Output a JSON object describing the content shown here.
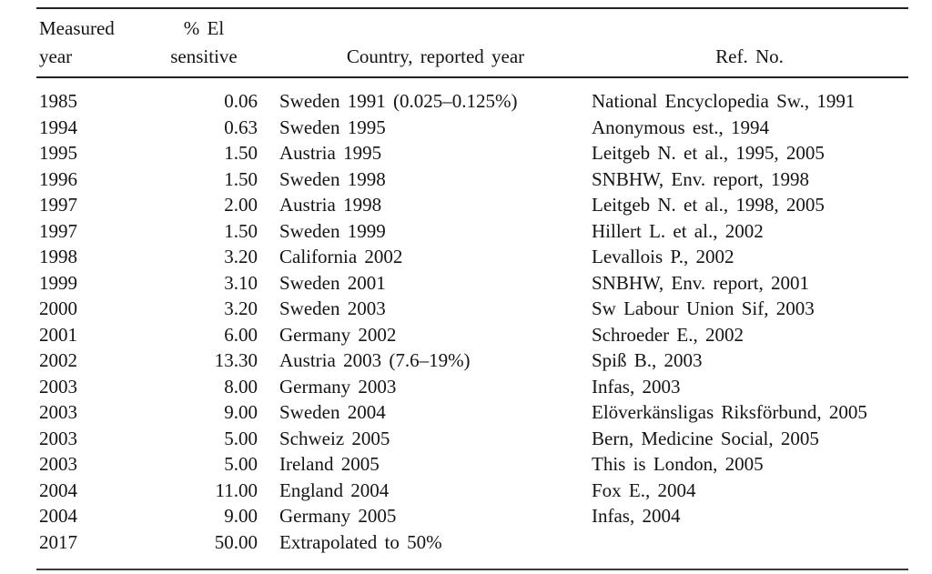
{
  "table": {
    "header": {
      "col1": {
        "line1": "Measured",
        "line2": "year"
      },
      "col2": {
        "line1": "% El",
        "line2": "sensitive"
      },
      "col3": "Country, reported year",
      "col4": "Ref. No."
    },
    "rows": [
      {
        "measured_year": "1985",
        "pct_el_sensitive": "0.06",
        "country_reported_year": "Sweden 1991 (0.025–0.125%)",
        "ref_no": "National Encyclopedia Sw., 1991"
      },
      {
        "measured_year": "1994",
        "pct_el_sensitive": "0.63",
        "country_reported_year": "Sweden 1995",
        "ref_no": "Anonymous est., 1994"
      },
      {
        "measured_year": "1995",
        "pct_el_sensitive": "1.50",
        "country_reported_year": "Austria 1995",
        "ref_no": "Leitgeb N. et al., 1995, 2005"
      },
      {
        "measured_year": "1996",
        "pct_el_sensitive": "1.50",
        "country_reported_year": "Sweden 1998",
        "ref_no": "SNBHW, Env. report, 1998"
      },
      {
        "measured_year": "1997",
        "pct_el_sensitive": "2.00",
        "country_reported_year": "Austria 1998",
        "ref_no": "Leitgeb N. et al., 1998, 2005"
      },
      {
        "measured_year": "1997",
        "pct_el_sensitive": "1.50",
        "country_reported_year": "Sweden 1999",
        "ref_no": "Hillert L. et al., 2002"
      },
      {
        "measured_year": "1998",
        "pct_el_sensitive": "3.20",
        "country_reported_year": "California 2002",
        "ref_no": "Levallois P., 2002"
      },
      {
        "measured_year": "1999",
        "pct_el_sensitive": "3.10",
        "country_reported_year": "Sweden 2001",
        "ref_no": "SNBHW, Env. report, 2001"
      },
      {
        "measured_year": "2000",
        "pct_el_sensitive": "3.20",
        "country_reported_year": "Sweden 2003",
        "ref_no": "Sw Labour Union Sif, 2003"
      },
      {
        "measured_year": "2001",
        "pct_el_sensitive": "6.00",
        "country_reported_year": "Germany 2002",
        "ref_no": "Schroeder E., 2002"
      },
      {
        "measured_year": "2002",
        "pct_el_sensitive": "13.30",
        "country_reported_year": "Austria 2003 (7.6–19%)",
        "ref_no": "Spiß B., 2003"
      },
      {
        "measured_year": "2003",
        "pct_el_sensitive": "8.00",
        "country_reported_year": "Germany 2003",
        "ref_no": "Infas, 2003"
      },
      {
        "measured_year": "2003",
        "pct_el_sensitive": "9.00",
        "country_reported_year": "Sweden 2004",
        "ref_no": "Elöverkänsligas Riksförbund, 2005"
      },
      {
        "measured_year": "2003",
        "pct_el_sensitive": "5.00",
        "country_reported_year": "Schweiz 2005",
        "ref_no": "Bern, Medicine Social, 2005"
      },
      {
        "measured_year": "2003",
        "pct_el_sensitive": "5.00",
        "country_reported_year": "Ireland 2005",
        "ref_no": "This is London, 2005"
      },
      {
        "measured_year": "2004",
        "pct_el_sensitive": "11.00",
        "country_reported_year": "England 2004",
        "ref_no": "Fox E., 2004"
      },
      {
        "measured_year": "2004",
        "pct_el_sensitive": "9.00",
        "country_reported_year": "Germany 2005",
        "ref_no": "Infas, 2004"
      },
      {
        "measured_year": "2017",
        "pct_el_sensitive": "50.00",
        "country_reported_year": "Extrapolated to 50%",
        "ref_no": ""
      }
    ]
  }
}
